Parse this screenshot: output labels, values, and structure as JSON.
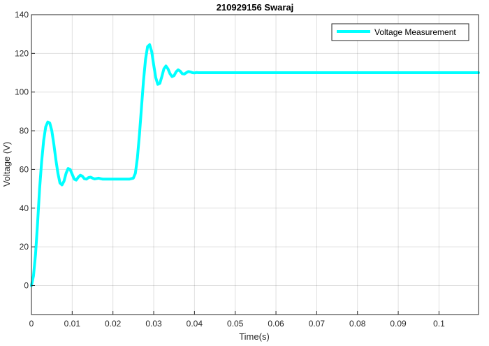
{
  "chart_data": {
    "type": "line",
    "title": "210929156 Swaraj",
    "xlabel": "Time(s)",
    "ylabel": "Voltage (V)",
    "xlim": [
      0,
      0.1097
    ],
    "ylim": [
      -15,
      140
    ],
    "xticks": [
      0,
      0.01,
      0.02,
      0.03,
      0.04,
      0.05,
      0.06,
      0.07,
      0.08,
      0.09,
      0.1
    ],
    "xtick_labels": [
      "0",
      "0.01",
      "0.02",
      "0.03",
      "0.04",
      "0.05",
      "0.06",
      "0.07",
      "0.08",
      "0.09",
      "0.1"
    ],
    "yticks": [
      0,
      20,
      40,
      60,
      80,
      100,
      120,
      140
    ],
    "ytick_labels": [
      "0",
      "20",
      "40",
      "60",
      "80",
      "100",
      "120",
      "140"
    ],
    "grid": true,
    "legend_position": "top-right",
    "series": [
      {
        "name": "Voltage Measurement",
        "color": "#00ffff",
        "x": [
          0,
          0.0005,
          0.001,
          0.0015,
          0.002,
          0.0025,
          0.003,
          0.0035,
          0.004,
          0.0045,
          0.005,
          0.0055,
          0.006,
          0.0065,
          0.007,
          0.0075,
          0.008,
          0.0085,
          0.009,
          0.0095,
          0.01,
          0.0105,
          0.011,
          0.0115,
          0.012,
          0.0125,
          0.013,
          0.0135,
          0.014,
          0.0145,
          0.015,
          0.0155,
          0.016,
          0.0165,
          0.017,
          0.0175,
          0.018,
          0.019,
          0.02,
          0.022,
          0.024,
          0.025,
          0.0255,
          0.026,
          0.0265,
          0.027,
          0.0275,
          0.028,
          0.0285,
          0.029,
          0.0295,
          0.03,
          0.0305,
          0.031,
          0.0315,
          0.032,
          0.0325,
          0.033,
          0.0335,
          0.034,
          0.0345,
          0.035,
          0.0355,
          0.036,
          0.0365,
          0.037,
          0.0375,
          0.038,
          0.0385,
          0.039,
          0.0395,
          0.04,
          0.0405,
          0.041,
          0.042,
          0.05,
          0.06,
          0.07,
          0.08,
          0.09,
          0.1,
          0.1097
        ],
        "y": [
          0,
          5,
          16,
          32,
          50,
          64,
          75,
          82,
          84.5,
          84,
          80,
          73,
          65,
          58,
          53,
          52,
          54,
          58,
          60.5,
          60,
          57.5,
          55,
          54.5,
          56,
          57,
          56.5,
          55.2,
          55,
          55.8,
          56,
          55.5,
          55.1,
          55.3,
          55.5,
          55.2,
          55,
          55,
          55,
          55,
          55,
          55,
          55.5,
          58,
          66,
          78,
          92,
          106,
          117,
          123.5,
          124.5,
          121,
          114,
          107.5,
          104,
          104.5,
          108,
          112,
          113.5,
          112,
          109.5,
          108,
          108.5,
          110.5,
          111.5,
          110.8,
          109.5,
          109.3,
          110,
          110.6,
          110.4,
          110,
          109.9,
          110.1,
          110,
          110,
          110,
          110,
          110,
          110,
          110,
          110,
          110
        ]
      }
    ]
  }
}
